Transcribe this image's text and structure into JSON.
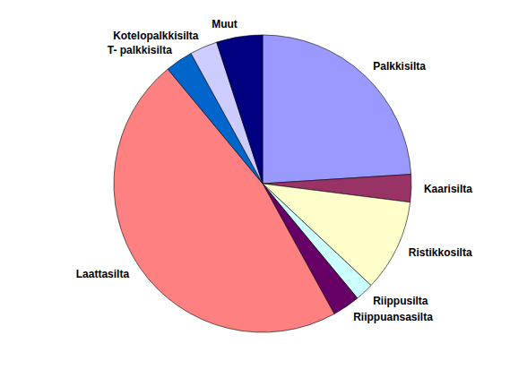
{
  "chart_data": {
    "type": "pie",
    "categories": [
      "Palkkisilta",
      "Kaarisilta",
      "Ristikkosilta",
      "Riippusilta",
      "Riippuansasilta",
      "Laattasilta",
      "T- palkkisilta",
      "Kotelopalkkisilta",
      "Muut"
    ],
    "values": [
      24,
      3,
      10,
      2,
      3,
      47,
      3,
      3,
      5
    ],
    "colors": [
      "#9999ff",
      "#993366",
      "#ffffcc",
      "#ccffff",
      "#660066",
      "#ff8080",
      "#0066cc",
      "#ccccff",
      "#000080"
    ]
  }
}
